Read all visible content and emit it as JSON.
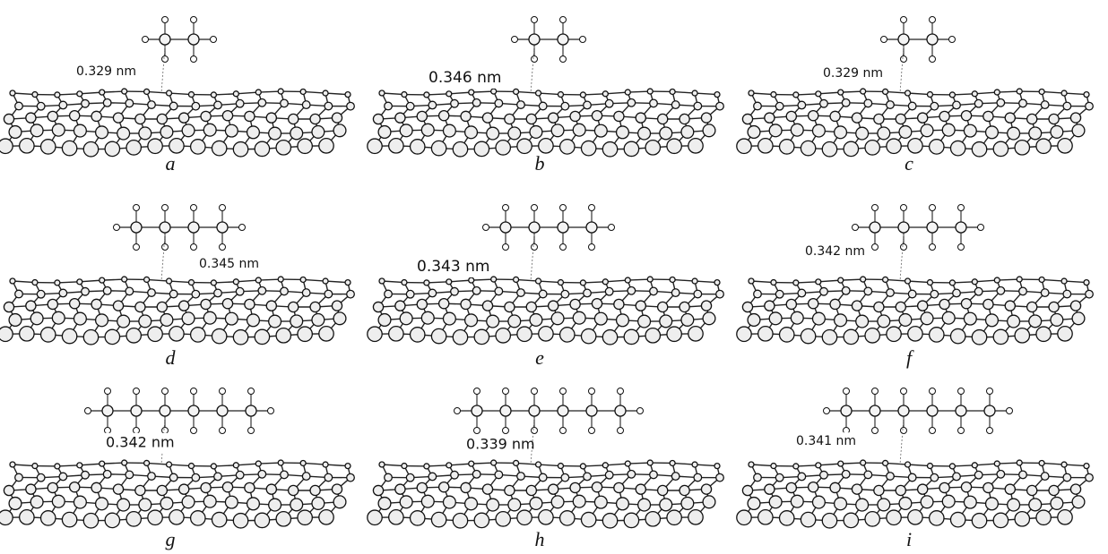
{
  "panels": [
    {
      "label": "a",
      "distance": "0.329 nm"
    },
    {
      "label": "b",
      "distance": "0.346 nm"
    },
    {
      "label": "c",
      "distance": "0.329 nm"
    },
    {
      "label": "d",
      "distance": "0.345 nm"
    },
    {
      "label": "e",
      "distance": "0.343 nm"
    },
    {
      "label": "f",
      "distance": "0.342 nm"
    },
    {
      "label": "g",
      "distance": "0.342 nm"
    },
    {
      "label": "h",
      "distance": "0.339 nm"
    },
    {
      "label": "i",
      "distance": "0.341 nm"
    }
  ]
}
